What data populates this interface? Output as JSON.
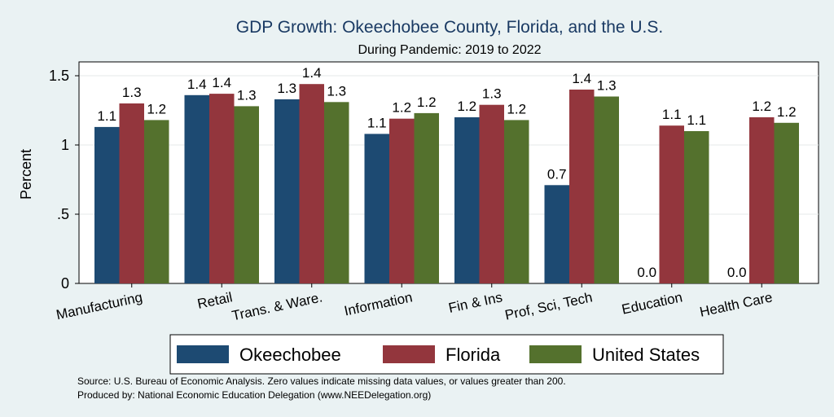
{
  "chart_data": {
    "type": "bar",
    "title": "GDP Growth: Okeechobee County, Florida, and the U.S.",
    "subtitle": "During Pandemic: 2019 to 2022",
    "ylabel": "Percent",
    "xlabel": "",
    "ylim": [
      0,
      1.6
    ],
    "yticks": [
      0,
      0.5,
      1,
      1.5
    ],
    "ytick_labels": [
      "0",
      ".5",
      "1",
      "1.5"
    ],
    "grid": true,
    "legend_position": "bottom",
    "categories": [
      "Manufacturing",
      "Retail",
      "Trans. & Ware.",
      "Information",
      "Fin & Ins",
      "Prof, Sci, Tech",
      "Education",
      "Health Care"
    ],
    "series": [
      {
        "name": "Okeechobee",
        "color": "#1d4a72",
        "values": [
          1.13,
          1.36,
          1.33,
          1.08,
          1.2,
          0.71,
          0.0,
          0.0
        ],
        "labels": [
          "1.1",
          "1.4",
          "1.3",
          "1.1",
          "1.2",
          "0.7",
          "0.0",
          "0.0"
        ]
      },
      {
        "name": "Florida",
        "color": "#93363d",
        "values": [
          1.3,
          1.37,
          1.44,
          1.19,
          1.29,
          1.4,
          1.14,
          1.2
        ],
        "labels": [
          "1.3",
          "1.4",
          "1.4",
          "1.2",
          "1.3",
          "1.4",
          "1.1",
          "1.2"
        ]
      },
      {
        "name": "United States",
        "color": "#54712d",
        "values": [
          1.18,
          1.28,
          1.31,
          1.23,
          1.18,
          1.35,
          1.1,
          1.16
        ],
        "labels": [
          "1.2",
          "1.3",
          "1.3",
          "1.2",
          "1.2",
          "1.3",
          "1.1",
          "1.2"
        ]
      }
    ],
    "notes": [
      "Source: U.S. Bureau of Economic Analysis. Zero values indicate missing data values, or values greater than 200.",
      "Produced by: National Economic Education Delegation (www.NEEDelegation.org)"
    ]
  }
}
